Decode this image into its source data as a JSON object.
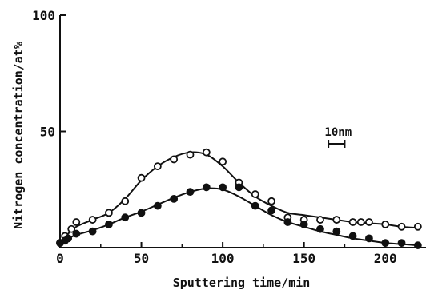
{
  "chart_data": {
    "type": "scatter",
    "title": "",
    "xlabel": "Sputtering time/min",
    "ylabel": "Nitrogen concentration/at%",
    "xlim": [
      0,
      225
    ],
    "ylim": [
      0,
      100
    ],
    "x_ticks": [
      0,
      50,
      100,
      150,
      200
    ],
    "y_ticks": [
      50,
      100
    ],
    "y_tick_labels": [
      "50",
      "100"
    ],
    "x_tick_labels": [
      "0",
      "50",
      "100",
      "150",
      "200"
    ],
    "origin_label": "0",
    "grid": false,
    "legend": "none",
    "annotation": {
      "label": "10nm",
      "scale_bar_minutes": 10,
      "bar_start": 165
    },
    "series": [
      {
        "marker": "open-circle",
        "points": [
          [
            0,
            2
          ],
          [
            3,
            5
          ],
          [
            7,
            8
          ],
          [
            10,
            11
          ],
          [
            20,
            12
          ],
          [
            30,
            15
          ],
          [
            40,
            20
          ],
          [
            50,
            30
          ],
          [
            60,
            35
          ],
          [
            70,
            38
          ],
          [
            80,
            40
          ],
          [
            90,
            41
          ],
          [
            100,
            37
          ],
          [
            110,
            28
          ],
          [
            120,
            23
          ],
          [
            130,
            20
          ],
          [
            140,
            13
          ],
          [
            150,
            12
          ],
          [
            160,
            12
          ],
          [
            170,
            12
          ],
          [
            180,
            11
          ],
          [
            185,
            11
          ],
          [
            190,
            11
          ],
          [
            200,
            10
          ],
          [
            210,
            9
          ],
          [
            220,
            9
          ]
        ],
        "curve": [
          [
            0,
            2
          ],
          [
            5,
            6
          ],
          [
            10,
            9
          ],
          [
            20,
            12
          ],
          [
            30,
            15
          ],
          [
            40,
            21
          ],
          [
            50,
            29
          ],
          [
            60,
            35
          ],
          [
            70,
            39
          ],
          [
            80,
            41
          ],
          [
            90,
            40
          ],
          [
            100,
            35
          ],
          [
            110,
            28
          ],
          [
            120,
            22
          ],
          [
            130,
            18
          ],
          [
            140,
            15
          ],
          [
            150,
            14
          ],
          [
            160,
            13
          ],
          [
            170,
            12
          ],
          [
            180,
            11
          ],
          [
            190,
            10.5
          ],
          [
            200,
            10
          ],
          [
            210,
            9
          ],
          [
            220,
            8.5
          ]
        ]
      },
      {
        "marker": "filled-circle",
        "points": [
          [
            0,
            2
          ],
          [
            3,
            3
          ],
          [
            5,
            4
          ],
          [
            10,
            6
          ],
          [
            20,
            7
          ],
          [
            30,
            10
          ],
          [
            40,
            13
          ],
          [
            50,
            15
          ],
          [
            60,
            18
          ],
          [
            70,
            21
          ],
          [
            80,
            24
          ],
          [
            90,
            26
          ],
          [
            100,
            26
          ],
          [
            110,
            26
          ],
          [
            120,
            18
          ],
          [
            130,
            16
          ],
          [
            140,
            11
          ],
          [
            150,
            10
          ],
          [
            160,
            8
          ],
          [
            170,
            7
          ],
          [
            180,
            5
          ],
          [
            190,
            4
          ],
          [
            200,
            2
          ],
          [
            210,
            2
          ],
          [
            220,
            1
          ]
        ],
        "curve": [
          [
            0,
            2
          ],
          [
            5,
            4
          ],
          [
            10,
            5.5
          ],
          [
            20,
            7.5
          ],
          [
            30,
            10
          ],
          [
            40,
            13
          ],
          [
            50,
            15.5
          ],
          [
            60,
            18.5
          ],
          [
            70,
            21.5
          ],
          [
            80,
            24
          ],
          [
            90,
            25.5
          ],
          [
            100,
            25
          ],
          [
            110,
            22
          ],
          [
            120,
            18
          ],
          [
            130,
            14
          ],
          [
            140,
            11
          ],
          [
            150,
            9
          ],
          [
            160,
            7
          ],
          [
            170,
            5.5
          ],
          [
            180,
            4
          ],
          [
            190,
            3
          ],
          [
            200,
            2
          ],
          [
            210,
            1.5
          ],
          [
            220,
            1
          ]
        ]
      }
    ]
  }
}
